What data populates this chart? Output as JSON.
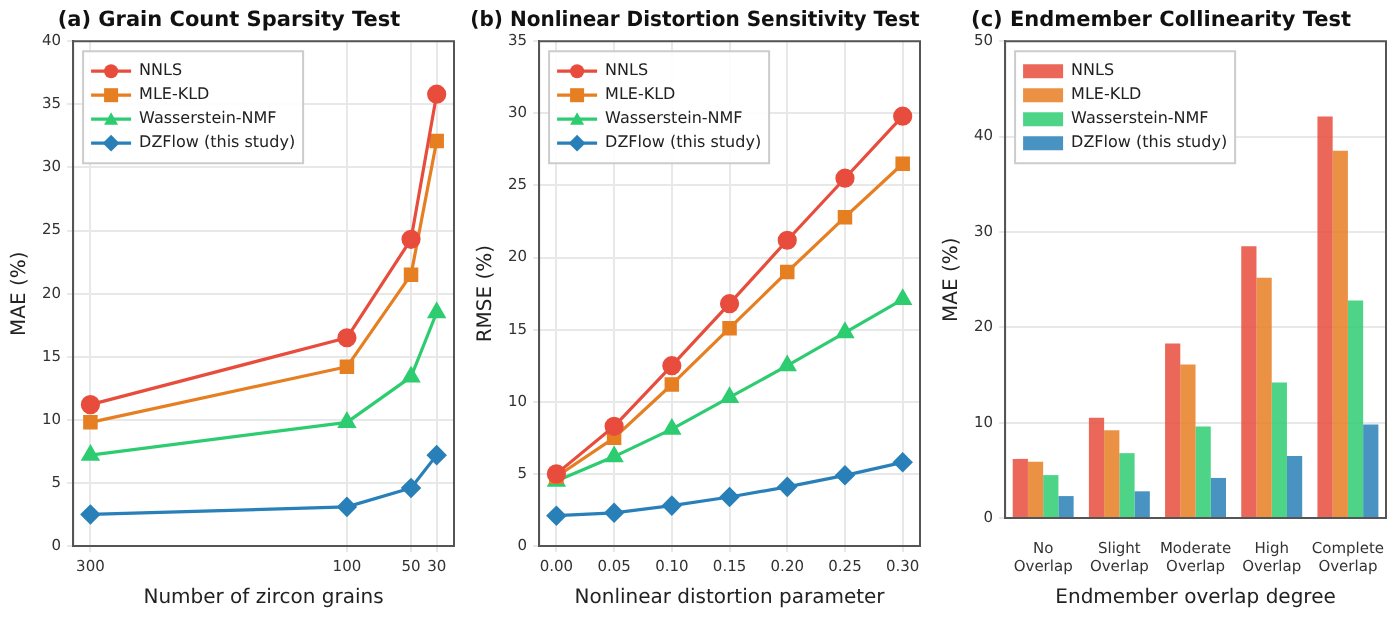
{
  "chart_data": [
    {
      "type": "line",
      "title": "(a) Grain Count Sparsity Test",
      "xlabel": "Number of zircon grains",
      "ylabel": "MAE (%)",
      "x": [
        300,
        100,
        50,
        30
      ],
      "xlim": [
        313.5,
        16.5
      ],
      "xticks": [
        300,
        100,
        50,
        30
      ],
      "ylim": [
        0,
        40
      ],
      "yticks": [
        0,
        5,
        10,
        15,
        20,
        25,
        30,
        35,
        40
      ],
      "grid": true,
      "legend": "top left",
      "series": [
        {
          "name": "NNLS",
          "color": "#e74c3c",
          "marker": "circle",
          "values": [
            11.2,
            16.5,
            24.3,
            35.8
          ]
        },
        {
          "name": "MLE-KLD",
          "color": "#e67e22",
          "marker": "square",
          "values": [
            9.8,
            14.2,
            21.5,
            32.1
          ]
        },
        {
          "name": "Wasserstein-NMF",
          "color": "#2ecc71",
          "marker": "triangle",
          "values": [
            7.2,
            9.8,
            13.4,
            18.5
          ]
        },
        {
          "name": "DZFlow (this study)",
          "color": "#2980b9",
          "marker": "diamond",
          "values": [
            2.5,
            3.1,
            4.6,
            7.2
          ]
        }
      ]
    },
    {
      "type": "line",
      "title": "(b) Nonlinear Distortion Sensitivity Test",
      "xlabel": "Nonlinear distortion parameter",
      "ylabel": "RMSE (%)",
      "x": [
        0,
        0.05,
        0.1,
        0.15,
        0.2,
        0.25,
        0.3
      ],
      "xlim": [
        -0.015,
        0.315
      ],
      "xticks": [
        {
          "value": 0,
          "label": "0.00"
        },
        {
          "value": 0.05,
          "label": "0.05"
        },
        {
          "value": 0.1,
          "label": "0.10"
        },
        {
          "value": 0.15,
          "label": "0.15"
        },
        {
          "value": 0.2,
          "label": "0.20"
        },
        {
          "value": 0.25,
          "label": "0.25"
        },
        {
          "value": 0.3,
          "label": "0.30"
        }
      ],
      "ylim": [
        0,
        35
      ],
      "yticks": [
        0,
        5,
        10,
        15,
        20,
        25,
        30,
        35
      ],
      "grid": true,
      "legend": "top left",
      "series": [
        {
          "name": "NNLS",
          "color": "#e74c3c",
          "marker": "circle",
          "values": [
            5.0,
            8.3,
            12.5,
            16.8,
            21.2,
            25.5,
            29.8
          ]
        },
        {
          "name": "MLE-KLD",
          "color": "#e67e22",
          "marker": "square",
          "values": [
            4.8,
            7.5,
            11.2,
            15.1,
            19.0,
            22.8,
            26.5
          ]
        },
        {
          "name": "Wasserstein-NMF",
          "color": "#2ecc71",
          "marker": "triangle",
          "values": [
            4.5,
            6.2,
            8.1,
            10.3,
            12.5,
            14.8,
            17.1
          ]
        },
        {
          "name": "DZFlow (this study)",
          "color": "#2980b9",
          "marker": "diamond",
          "values": [
            2.1,
            2.3,
            2.8,
            3.4,
            4.1,
            4.9,
            5.8
          ]
        }
      ]
    },
    {
      "type": "bar",
      "title": "(c) Endmember Collinearity Test",
      "xlabel": "Endmember overlap degree",
      "ylabel": "MAE (%)",
      "categories": [
        "No Overlap",
        "Slight Overlap",
        "Moderate Overlap",
        "High Overlap",
        "Complete Overlap"
      ],
      "ylim": [
        0,
        50
      ],
      "yticks": [
        0,
        10,
        20,
        30,
        40,
        50
      ],
      "grid": "y",
      "legend": "top left",
      "series": [
        {
          "name": "NNLS",
          "color": "#e74c3c",
          "values": [
            6.2,
            10.5,
            18.3,
            28.5,
            42.1
          ]
        },
        {
          "name": "MLE-KLD",
          "color": "#e67e22",
          "values": [
            5.9,
            9.2,
            16.1,
            25.2,
            38.5
          ]
        },
        {
          "name": "Wasserstein-NMF",
          "color": "#2ecc71",
          "values": [
            4.5,
            6.8,
            9.6,
            14.2,
            22.8
          ]
        },
        {
          "name": "DZFlow (this study)",
          "color": "#2980b9",
          "values": [
            2.3,
            2.8,
            4.2,
            6.5,
            9.8
          ]
        }
      ]
    }
  ]
}
